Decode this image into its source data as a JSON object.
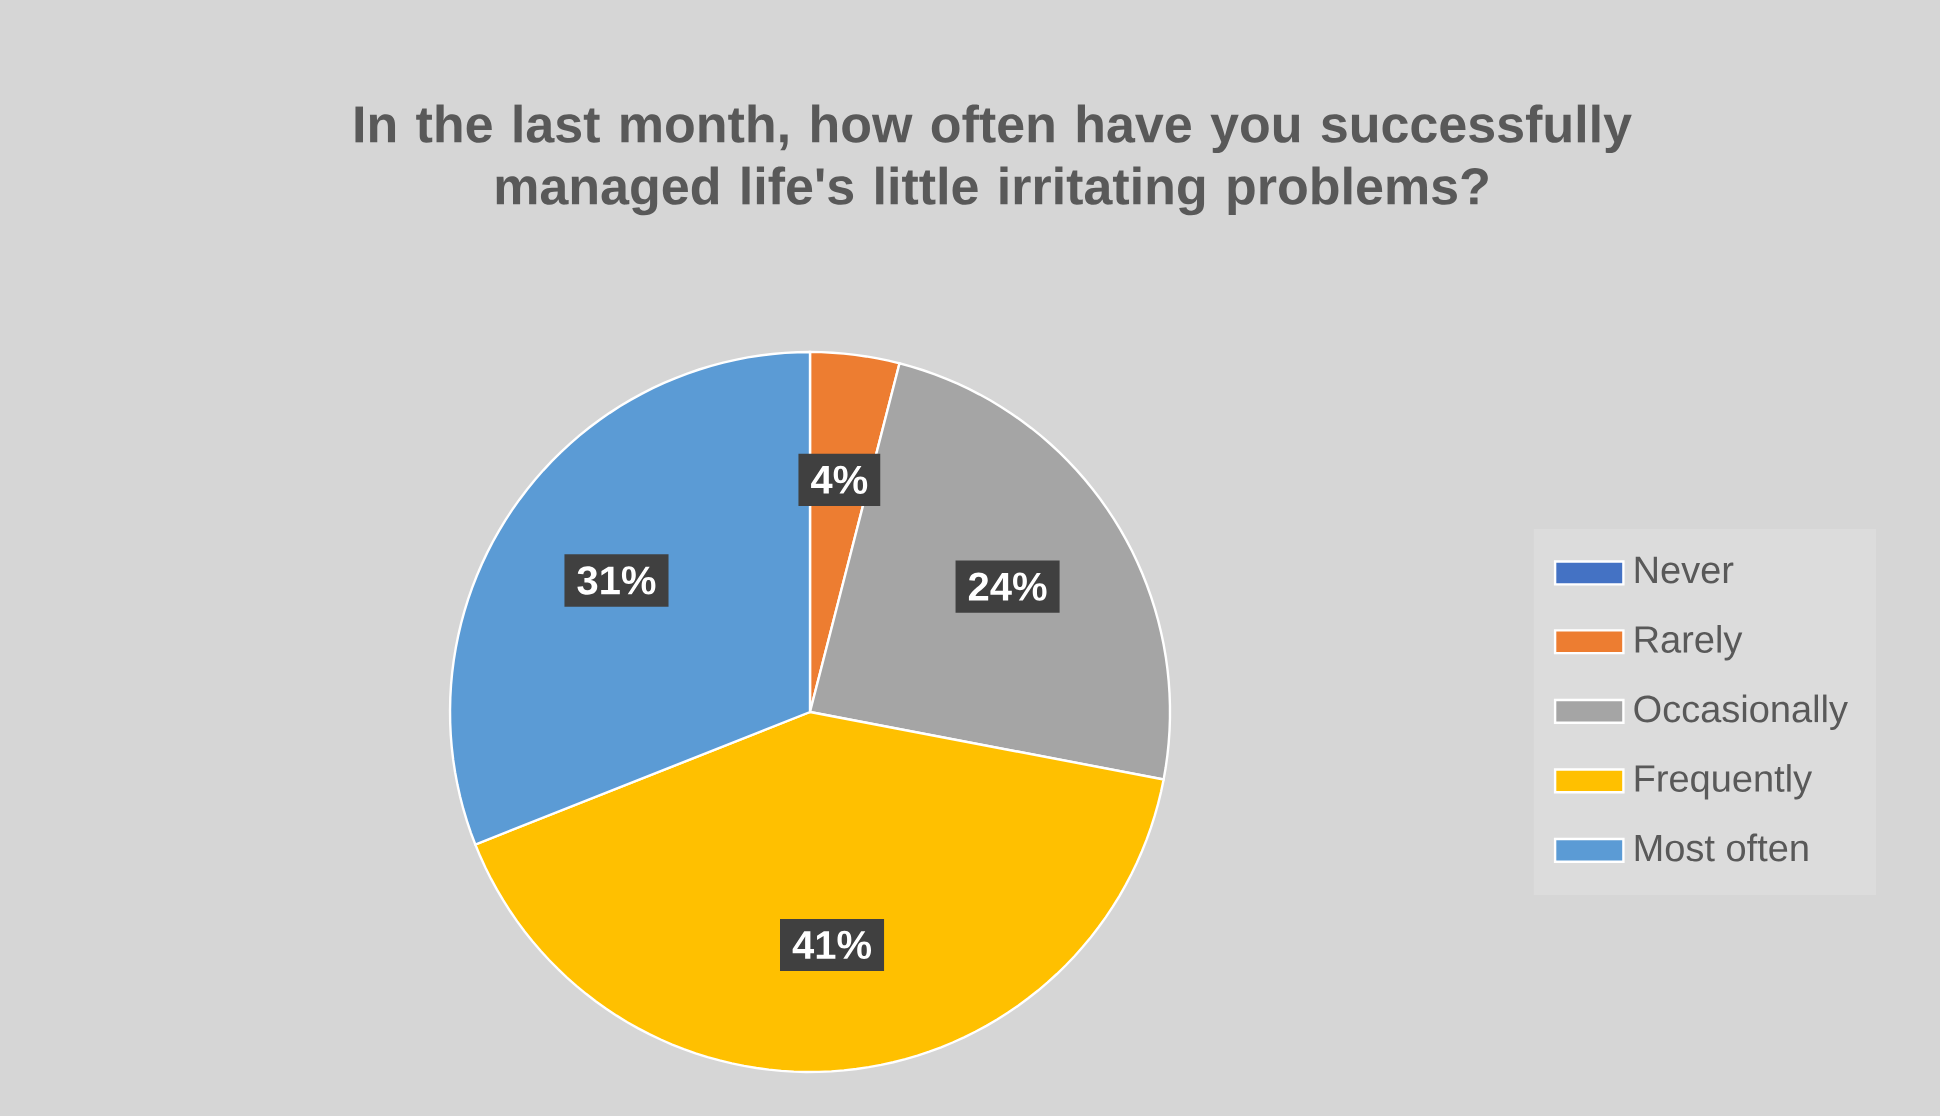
{
  "chart_data": {
    "type": "pie",
    "title": "In the last month, how often have you successfully managed life's little irritating problems?",
    "categories": [
      "Never",
      "Rarely",
      "Occasionally",
      "Frequently",
      "Most often"
    ],
    "values": [
      0,
      4,
      24,
      41,
      31
    ],
    "colors": [
      "#4472c4",
      "#ed7d31",
      "#a5a5a5",
      "#ffc000",
      "#5b9bd5"
    ],
    "value_labels": [
      null,
      "4%",
      "24%",
      "41%",
      "31%"
    ],
    "legend": "right"
  }
}
